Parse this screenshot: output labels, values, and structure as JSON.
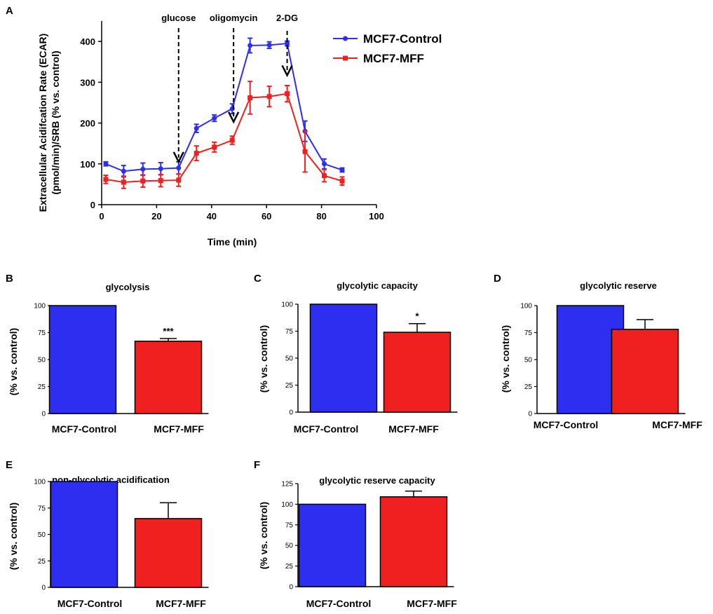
{
  "colors": {
    "control": "#2e2ef0",
    "mff": "#f02020",
    "axis": "#000000"
  },
  "chart_data": [
    {
      "panel": "A",
      "type": "line",
      "title": "",
      "xlabel": "Time (min)",
      "ylabel": [
        "Extracellular Acidifcation Rate (ECAR)",
        "(pmol/min)/SRB (% vs. control)"
      ],
      "xlim": [
        0,
        100
      ],
      "ylim": [
        0,
        450
      ],
      "xticks": [
        0,
        20,
        40,
        60,
        80,
        100
      ],
      "yticks": [
        0,
        100,
        200,
        300,
        400
      ],
      "x": [
        1.5,
        8,
        15,
        21.5,
        28,
        34.5,
        41,
        47.5,
        54,
        61,
        67.5,
        74,
        81,
        87.5
      ],
      "series": [
        {
          "name": "MCF7-Control",
          "color": "#2e2ef0",
          "values": [
            100,
            82,
            87,
            88,
            90,
            187,
            212,
            235,
            390,
            391,
            395,
            180,
            100,
            85
          ],
          "errors": [
            5,
            14,
            15,
            15,
            15,
            10,
            8,
            12,
            18,
            8,
            6,
            25,
            12,
            5
          ]
        },
        {
          "name": "MCF7-MFF",
          "color": "#f02020",
          "values": [
            62,
            55,
            58,
            59,
            60,
            126,
            141,
            158,
            262,
            265,
            272,
            130,
            71,
            58
          ],
          "errors": [
            10,
            15,
            15,
            15,
            15,
            18,
            12,
            10,
            40,
            25,
            20,
            50,
            15,
            10
          ]
        }
      ],
      "annotations": [
        {
          "label": "glucose",
          "x": 28
        },
        {
          "label": "oligomycin",
          "x": 48
        },
        {
          "label": "2-DG",
          "x": 68
        }
      ]
    },
    {
      "panel": "B",
      "type": "bar",
      "title": "glycolysis",
      "ylabel": "(% vs. control)",
      "categories": [
        "MCF7-Control",
        "MCF7-MFF"
      ],
      "values": [
        100,
        67
      ],
      "errors": [
        0,
        2.5
      ],
      "ylim": [
        0,
        100
      ],
      "yticks": [
        0,
        25,
        50,
        75,
        100
      ],
      "significance": "***"
    },
    {
      "panel": "C",
      "type": "bar",
      "title": "glycolytic capacity",
      "ylabel": "(% vs. control)",
      "categories": [
        "MCF7-Control",
        "MCF7-MFF"
      ],
      "values": [
        100,
        74
      ],
      "errors": [
        0,
        8
      ],
      "ylim": [
        0,
        100
      ],
      "yticks": [
        0,
        25,
        50,
        75,
        100
      ],
      "significance": "*"
    },
    {
      "panel": "D",
      "type": "bar",
      "title": "glycolytic reserve",
      "ylabel": "(% vs. control)",
      "categories": [
        "MCF7-Control",
        "MCF7-MFF"
      ],
      "values": [
        100,
        78
      ],
      "errors": [
        0,
        9
      ],
      "ylim": [
        0,
        100
      ],
      "yticks": [
        0,
        25,
        50,
        75,
        100
      ],
      "significance": ""
    },
    {
      "panel": "E",
      "type": "bar",
      "title": "non-glycolytic acidification",
      "ylabel": "(% vs. control)",
      "categories": [
        "MCF7-Control",
        "MCF7-MFF"
      ],
      "values": [
        100,
        65
      ],
      "errors": [
        0,
        15
      ],
      "ylim": [
        0,
        100
      ],
      "yticks": [
        0,
        25,
        50,
        75,
        100
      ],
      "significance": ""
    },
    {
      "panel": "F",
      "type": "bar",
      "title": "glycolytic reserve capacity",
      "ylabel": "(% vs. control)",
      "categories": [
        "MCF7-Control",
        "MCF7-MFF"
      ],
      "values": [
        100,
        109
      ],
      "errors": [
        0,
        7
      ],
      "ylim": [
        0,
        125
      ],
      "yticks": [
        0,
        25,
        50,
        75,
        100,
        125
      ],
      "significance": ""
    }
  ]
}
